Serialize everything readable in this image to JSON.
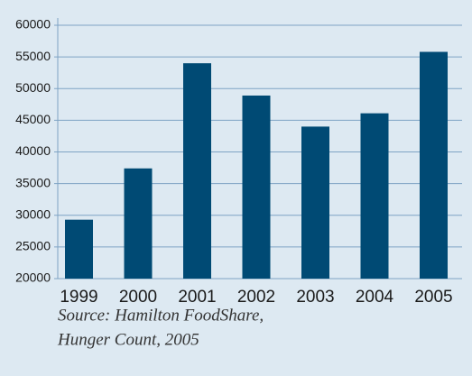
{
  "chart_data": {
    "type": "bar",
    "categories": [
      "1999",
      "2000",
      "2001",
      "2002",
      "2003",
      "2004",
      "2005"
    ],
    "values": [
      29300,
      37400,
      54000,
      48900,
      44000,
      46100,
      55800
    ],
    "color": "#004a74",
    "ylim": [
      20000,
      60000
    ],
    "yticks": [
      20000,
      25000,
      30000,
      35000,
      40000,
      45000,
      50000,
      55000,
      60000
    ],
    "grid": true,
    "annotations": [
      "Source: Hamilton FoodShare,",
      "Hunger Count, 2005"
    ]
  }
}
